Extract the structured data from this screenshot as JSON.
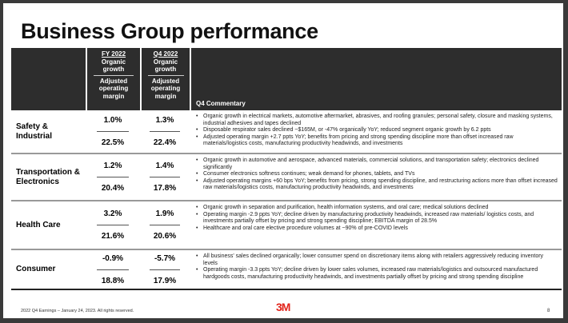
{
  "title": "Business Group performance",
  "header": {
    "col1_top": "FY 2022",
    "col2_top": "Q4 2022",
    "organic": "Organic growth",
    "adjusted": "Adjusted operating margin",
    "commentary": "Q4 Commentary"
  },
  "rows": [
    {
      "name": "Safety & Industrial",
      "fy_growth": "1.0%",
      "fy_margin": "22.5%",
      "q4_growth": "1.3%",
      "q4_margin": "22.4%",
      "bullets": [
        "Organic growth in electrical markets, automotive aftermarket, abrasives, and roofing granules; personal safety, closure and masking systems, industrial adhesives and tapes declined",
        "Disposable respirator sales declined ~$165M, or -47% organically YoY; reduced segment organic growth by 6.2 ppts",
        "Adjusted operating margin +2.7 ppts YoY; benefits from pricing and strong spending discipline more than offset increased raw materials/logistics costs, manufacturing productivity headwinds, and investments"
      ]
    },
    {
      "name": "Transportation & Electronics",
      "fy_growth": "1.2%",
      "fy_margin": "20.4%",
      "q4_growth": "1.4%",
      "q4_margin": "17.8%",
      "bullets": [
        "Organic growth in automotive and aerospace, advanced materials, commercial solutions, and transportation safety; electronics declined significantly",
        "Consumer electronics softness continues; weak demand for phones, tablets, and TVs",
        "Adjusted operating margins +60 bps YoY; benefits from pricing, strong spending discipline, and restructuring actions more than offset increased raw materials/logistics costs, manufacturing productivity headwinds, and investments"
      ]
    },
    {
      "name": "Health Care",
      "fy_growth": "3.2%",
      "fy_margin": "21.6%",
      "q4_growth": "1.9%",
      "q4_margin": "20.6%",
      "bullets": [
        "Organic growth in separation and purification, health information systems, and oral care; medical solutions declined",
        "Operating margin -2.9 ppts YoY; decline driven by manufacturing productivity headwinds, increased raw materials/ logistics costs, and investments partially offset by pricing and strong spending discipline; EBITDA margin of 28.5%",
        "Healthcare and oral care elective procedure volumes at ~90% of pre-COVID levels"
      ]
    },
    {
      "name": "Consumer",
      "fy_growth": "-0.9%",
      "fy_margin": "18.8%",
      "q4_growth": "-5.7%",
      "q4_margin": "17.9%",
      "bullets": [
        "All business' sales declined organically; lower consumer spend on discretionary items along with retailers aggressively reducing inventory levels",
        "Operating margin -3.3 ppts YoY; decline driven by lower sales volumes, increased raw materials/logistics and outsourced manufactured hardgoods costs, manufacturing productivity headwinds, and investments partially offset by pricing and strong spending discipline"
      ]
    }
  ],
  "footer": {
    "text": "2022 Q4 Earnings – January 24, 2023. All rights reserved.",
    "logo": "3M",
    "page": "8"
  },
  "colors": {
    "header_bg": "#2d2d2d",
    "brand_red": "#e2231a"
  }
}
